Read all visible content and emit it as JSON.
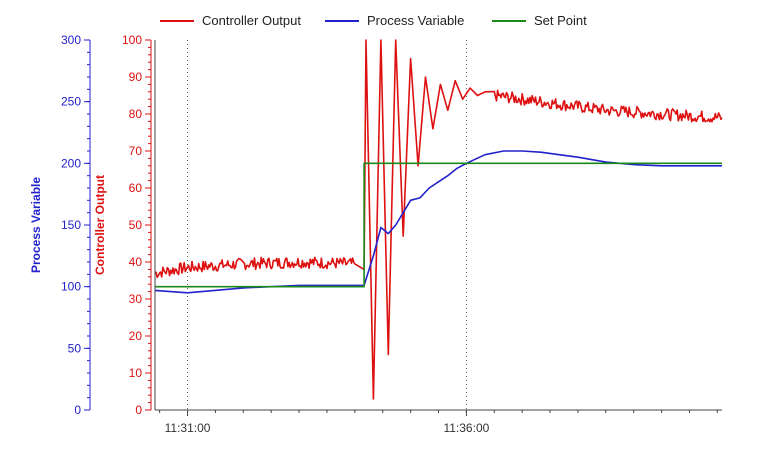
{
  "chart_data": {
    "type": "line",
    "title": "",
    "legend_position": "top",
    "grid": "vertical dotted lines at time ticks",
    "x_axis": {
      "label": "",
      "tick_labels": [
        "11:31:00",
        "11:36:00"
      ],
      "ticks": [
        "11:31:00",
        "11:36:00"
      ],
      "range": [
        "11:30:25",
        "11:40:35"
      ]
    },
    "y_axes": [
      {
        "id": "pv",
        "label": "Process Variable",
        "color": "#2222cc",
        "range": [
          0,
          300
        ],
        "ticks": [
          0,
          50,
          100,
          150,
          200,
          250,
          300
        ],
        "position": "left-outer"
      },
      {
        "id": "co",
        "label": "Controller Output",
        "color": "#dd1111",
        "range": [
          0,
          100
        ],
        "ticks": [
          0,
          10,
          20,
          30,
          40,
          50,
          60,
          70,
          80,
          90,
          100
        ],
        "position": "left-inner"
      }
    ],
    "series": [
      {
        "name": "Controller Output",
        "axis": "co",
        "color": "#dd1111",
        "x": [
          "11:30:25",
          "11:31:00",
          "11:32:00",
          "11:33:00",
          "11:34:00",
          "11:34:10",
          "11:34:12",
          "11:34:20",
          "11:34:28",
          "11:34:36",
          "11:34:44",
          "11:34:52",
          "11:35:00",
          "11:35:08",
          "11:35:16",
          "11:35:24",
          "11:35:32",
          "11:35:40",
          "11:35:48",
          "11:35:56",
          "11:36:04",
          "11:36:12",
          "11:36:20",
          "11:36:30",
          "11:37:00",
          "11:37:30",
          "11:38:00",
          "11:38:30",
          "11:39:00",
          "11:39:30",
          "11:40:00",
          "11:40:35"
        ],
        "values": [
          37,
          38.5,
          39.5,
          40,
          39.5,
          38,
          100,
          3,
          100,
          15,
          100,
          47,
          95,
          66,
          90,
          76,
          88,
          81,
          89,
          84,
          87,
          85,
          86,
          85,
          84,
          83,
          82,
          81,
          80.5,
          80,
          79.5,
          79
        ]
      },
      {
        "name": "Process Variable",
        "axis": "pv",
        "color": "#2222cc",
        "x": [
          "11:30:25",
          "11:31:00",
          "11:32:00",
          "11:33:00",
          "11:34:00",
          "11:34:10",
          "11:34:20",
          "11:34:28",
          "11:34:36",
          "11:34:44",
          "11:34:52",
          "11:35:00",
          "11:35:10",
          "11:35:20",
          "11:35:30",
          "11:35:40",
          "11:35:50",
          "11:36:00",
          "11:36:20",
          "11:36:40",
          "11:37:00",
          "11:37:20",
          "11:37:40",
          "11:38:00",
          "11:38:30",
          "11:39:00",
          "11:39:30",
          "11:40:00",
          "11:40:35"
        ],
        "values": [
          97,
          95,
          99,
          101,
          101,
          101,
          125,
          148,
          143,
          150,
          160,
          170,
          172,
          180,
          185,
          190,
          196,
          200,
          207,
          210,
          210,
          209,
          207,
          205,
          201,
          199,
          198,
          198,
          198
        ]
      },
      {
        "name": "Set Point",
        "axis": "pv",
        "color": "#1a8a1a",
        "x": [
          "11:30:25",
          "11:34:10",
          "11:34:10",
          "11:40:35"
        ],
        "values": [
          100,
          100,
          200,
          200
        ]
      }
    ]
  }
}
